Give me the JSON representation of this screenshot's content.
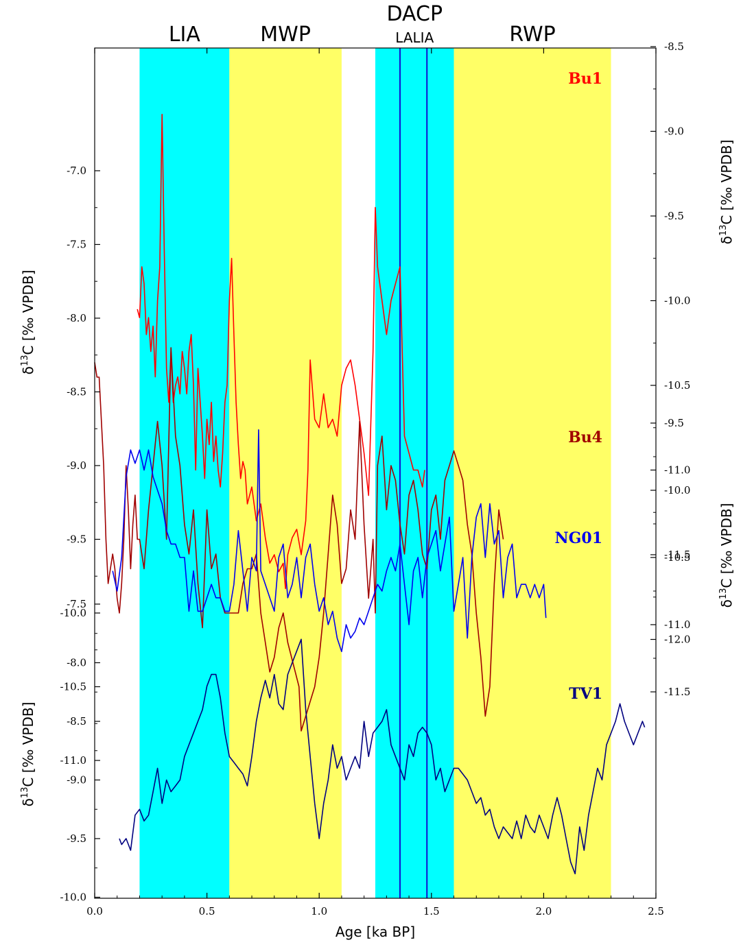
{
  "chart_data": {
    "type": "line",
    "xlabel": "Age [ka BP]",
    "x_ticks": [
      "0.0",
      "0.5",
      "1.0",
      "1.5",
      "2.0",
      "2.5"
    ],
    "xlim": [
      0,
      2.5
    ],
    "periods": [
      {
        "label": "LIA",
        "sub": "",
        "start": 0.2,
        "end": 0.6,
        "color": "#00ffff"
      },
      {
        "label": "MWP",
        "sub": "",
        "start": 0.6,
        "end": 1.1,
        "color": "#ffff66"
      },
      {
        "label": "DACP",
        "sub": "LALIA",
        "start": 1.25,
        "end": 1.6,
        "color": "#00ffff"
      },
      {
        "label": "RWP",
        "sub": "",
        "start": 1.6,
        "end": 2.3,
        "color": "#ffff66"
      }
    ],
    "lalia_lines": [
      1.36,
      1.48
    ],
    "axes": [
      {
        "id": "left_upper",
        "side": "left",
        "label": "δ13C [‰ VPDB]",
        "ticks": [
          "-7.0",
          "-7.5",
          "-8.0",
          "-8.5",
          "-9.0",
          "-9.5",
          "-10.0",
          "-10.5",
          "-11.0"
        ],
        "values": [
          -7.0,
          -7.5,
          -8.0,
          -8.5,
          -9.0,
          -9.5,
          -10.0,
          -10.5,
          -11.0
        ]
      },
      {
        "id": "left_lower",
        "side": "left",
        "label": "δ13C [‰ VPDB]",
        "ticks": [
          "-7.5",
          "-8.0",
          "-8.5",
          "-9.0",
          "-9.5",
          "-10.0"
        ],
        "values": [
          -7.5,
          -8.0,
          -8.5,
          -9.0,
          -9.5,
          -10.0
        ]
      },
      {
        "id": "right_upper",
        "side": "right",
        "label": "δ13C [‰ VPDB]",
        "ticks": [
          "-8.5",
          "-9.0",
          "-9.5",
          "-10.0",
          "-10.5",
          "-11.0",
          "-11.5",
          "-12.0"
        ],
        "values": [
          -8.5,
          -9.0,
          -9.5,
          -10.0,
          -10.5,
          -11.0,
          -11.5,
          -12.0
        ]
      },
      {
        "id": "right_lower",
        "side": "right",
        "label": "δ13C [‰ VPDB]",
        "ticks": [
          "-9.5",
          "-10.0",
          "-10.5",
          "-11.0",
          "-11.5"
        ],
        "values": [
          -9.5,
          -10.0,
          -10.5,
          -11.0,
          -11.5
        ]
      }
    ],
    "series": [
      {
        "name": "Bu1",
        "axis": "right_upper",
        "color": "#ff0000",
        "x": [
          0.19,
          0.2,
          0.21,
          0.22,
          0.23,
          0.24,
          0.25,
          0.26,
          0.27,
          0.28,
          0.29,
          0.3,
          0.31,
          0.32,
          0.33,
          0.34,
          0.35,
          0.36,
          0.37,
          0.38,
          0.39,
          0.4,
          0.41,
          0.42,
          0.43,
          0.44,
          0.45,
          0.46,
          0.47,
          0.48,
          0.49,
          0.5,
          0.51,
          0.52,
          0.53,
          0.54,
          0.55,
          0.56,
          0.57,
          0.58,
          0.59,
          0.6,
          0.61,
          0.62,
          0.63,
          0.64,
          0.65,
          0.66,
          0.67,
          0.68,
          0.7,
          0.72,
          0.74,
          0.76,
          0.78,
          0.8,
          0.82,
          0.84,
          0.85,
          0.86,
          0.88,
          0.9,
          0.92,
          0.94,
          0.95,
          0.96,
          0.98,
          1.0,
          1.02,
          1.04,
          1.06,
          1.08,
          1.1,
          1.12,
          1.14,
          1.16,
          1.18,
          1.2,
          1.22,
          1.24,
          1.25,
          1.26,
          1.28,
          1.3,
          1.32,
          1.34,
          1.36,
          1.38,
          1.4,
          1.42,
          1.44,
          1.46,
          1.47
        ],
        "y": [
          -10.05,
          -10.1,
          -9.8,
          -9.9,
          -10.2,
          -10.1,
          -10.3,
          -10.15,
          -10.45,
          -10.0,
          -9.8,
          -8.9,
          -9.7,
          -10.4,
          -10.6,
          -10.3,
          -10.6,
          -10.5,
          -10.45,
          -10.55,
          -10.3,
          -10.4,
          -10.55,
          -10.3,
          -10.2,
          -10.5,
          -11.0,
          -10.4,
          -10.6,
          -10.8,
          -11.05,
          -10.7,
          -10.85,
          -10.6,
          -10.95,
          -10.8,
          -11.0,
          -11.1,
          -10.9,
          -10.6,
          -10.5,
          -10.0,
          -9.75,
          -10.2,
          -10.6,
          -10.85,
          -11.05,
          -10.95,
          -11.0,
          -11.2,
          -11.1,
          -11.3,
          -11.2,
          -11.4,
          -11.55,
          -11.5,
          -11.6,
          -11.55,
          -11.7,
          -11.5,
          -11.4,
          -11.35,
          -11.5,
          -11.3,
          -11.0,
          -10.35,
          -10.7,
          -10.75,
          -10.55,
          -10.75,
          -10.7,
          -10.8,
          -10.5,
          -10.4,
          -10.35,
          -10.5,
          -10.7,
          -10.9,
          -11.15,
          -10.3,
          -9.45,
          -9.8,
          -10.0,
          -10.2,
          -10.0,
          -9.9,
          -9.8,
          -10.8,
          -10.9,
          -11.0,
          -11.0,
          -11.1,
          -11.0
        ]
      },
      {
        "name": "Bu4",
        "axis": "left_upper",
        "color": "#a00000",
        "x": [
          0.0,
          0.01,
          0.02,
          0.04,
          0.05,
          0.06,
          0.07,
          0.08,
          0.09,
          0.1,
          0.11,
          0.12,
          0.13,
          0.14,
          0.15,
          0.16,
          0.17,
          0.18,
          0.19,
          0.2,
          0.22,
          0.24,
          0.26,
          0.28,
          0.3,
          0.32,
          0.34,
          0.36,
          0.38,
          0.4,
          0.42,
          0.44,
          0.46,
          0.48,
          0.5,
          0.52,
          0.54,
          0.56,
          0.58,
          0.6,
          0.62,
          0.64,
          0.66,
          0.68,
          0.7,
          0.72,
          0.74,
          0.76,
          0.78,
          0.8,
          0.82,
          0.84,
          0.86,
          0.91,
          0.92,
          0.94,
          0.96,
          0.98,
          1.0,
          1.02,
          1.04,
          1.06,
          1.08,
          1.1,
          1.12,
          1.14,
          1.16,
          1.18,
          1.2,
          1.22,
          1.24,
          1.25,
          1.26,
          1.28,
          1.3,
          1.32,
          1.34,
          1.36,
          1.38,
          1.4,
          1.42,
          1.44,
          1.46,
          1.48,
          1.5,
          1.52,
          1.54,
          1.56,
          1.58,
          1.6,
          1.62,
          1.64,
          1.66,
          1.68,
          1.7,
          1.72,
          1.74,
          1.76,
          1.78,
          1.8,
          1.82
        ],
        "y": [
          -8.3,
          -8.4,
          -8.4,
          -9.0,
          -9.5,
          -9.8,
          -9.7,
          -9.6,
          -9.7,
          -9.9,
          -10.0,
          -9.8,
          -9.5,
          -9.0,
          -9.3,
          -9.7,
          -9.4,
          -9.2,
          -9.5,
          -9.5,
          -9.7,
          -9.3,
          -9.0,
          -8.7,
          -9.0,
          -9.5,
          -8.2,
          -8.8,
          -9.0,
          -9.4,
          -9.6,
          -9.3,
          -9.8,
          -10.1,
          -9.3,
          -9.7,
          -9.6,
          -9.9,
          -10.0,
          -10.0,
          -10.0,
          -10.0,
          -9.8,
          -9.7,
          -9.7,
          -9.6,
          -10.0,
          -10.2,
          -10.4,
          -10.3,
          -10.1,
          -10.0,
          -10.2,
          -10.5,
          -10.8,
          -10.7,
          -10.6,
          -10.5,
          -10.3,
          -10.0,
          -9.6,
          -9.2,
          -9.4,
          -9.8,
          -9.7,
          -9.3,
          -9.5,
          -8.7,
          -9.4,
          -9.9,
          -9.5,
          -10.0,
          -9.0,
          -8.8,
          -9.3,
          -9.0,
          -9.1,
          -9.4,
          -9.6,
          -9.2,
          -9.1,
          -9.3,
          -9.6,
          -9.7,
          -9.3,
          -9.2,
          -9.5,
          -9.1,
          -9.0,
          -8.9,
          -9.0,
          -9.1,
          -9.4,
          -9.6,
          -10.0,
          -10.3,
          -10.7,
          -10.5,
          -9.8,
          -9.3,
          -9.5
        ]
      },
      {
        "name": "NG01",
        "axis": "right_lower",
        "color": "#0000ee",
        "x": [
          0.08,
          0.1,
          0.12,
          0.14,
          0.16,
          0.18,
          0.2,
          0.22,
          0.24,
          0.26,
          0.28,
          0.3,
          0.32,
          0.34,
          0.36,
          0.38,
          0.4,
          0.42,
          0.44,
          0.46,
          0.48,
          0.5,
          0.52,
          0.54,
          0.56,
          0.58,
          0.6,
          0.62,
          0.64,
          0.66,
          0.68,
          0.7,
          0.72,
          0.73,
          0.74,
          0.76,
          0.78,
          0.8,
          0.82,
          0.84,
          0.86,
          0.88,
          0.9,
          0.92,
          0.94,
          0.96,
          0.98,
          1.0,
          1.02,
          1.04,
          1.06,
          1.08,
          1.1,
          1.12,
          1.14,
          1.16,
          1.18,
          1.2,
          1.22,
          1.24,
          1.26,
          1.28,
          1.3,
          1.32,
          1.34,
          1.36,
          1.38,
          1.4,
          1.42,
          1.44,
          1.46,
          1.48,
          1.5,
          1.52,
          1.54,
          1.56,
          1.58,
          1.6,
          1.62,
          1.64,
          1.66,
          1.68,
          1.7,
          1.72,
          1.74,
          1.76,
          1.78,
          1.8,
          1.82,
          1.84,
          1.86,
          1.88,
          1.9,
          1.92,
          1.94,
          1.96,
          1.98,
          2.0,
          2.01
        ],
        "y": [
          -10.6,
          -10.75,
          -10.5,
          -9.9,
          -9.7,
          -9.8,
          -9.7,
          -9.85,
          -9.7,
          -9.9,
          -10.0,
          -10.1,
          -10.3,
          -10.4,
          -10.4,
          -10.5,
          -10.5,
          -10.9,
          -10.6,
          -10.9,
          -10.9,
          -10.8,
          -10.7,
          -10.8,
          -10.8,
          -10.9,
          -10.9,
          -10.7,
          -10.3,
          -10.6,
          -10.9,
          -10.5,
          -10.6,
          -9.55,
          -10.6,
          -10.7,
          -10.8,
          -10.9,
          -10.5,
          -10.4,
          -10.8,
          -10.7,
          -10.5,
          -10.8,
          -10.5,
          -10.4,
          -10.7,
          -10.9,
          -10.8,
          -11.0,
          -10.9,
          -11.1,
          -11.2,
          -11.0,
          -11.1,
          -11.05,
          -10.95,
          -11.0,
          -10.9,
          -10.8,
          -10.7,
          -10.75,
          -10.6,
          -10.5,
          -10.6,
          -10.4,
          -10.7,
          -11.0,
          -10.6,
          -10.5,
          -10.8,
          -10.5,
          -10.4,
          -10.3,
          -10.6,
          -10.4,
          -10.2,
          -10.9,
          -10.7,
          -10.5,
          -11.1,
          -10.5,
          -10.2,
          -10.1,
          -10.5,
          -10.1,
          -10.4,
          -10.3,
          -10.8,
          -10.5,
          -10.4,
          -10.8,
          -10.7,
          -10.7,
          -10.8,
          -10.7,
          -10.8,
          -10.7,
          -10.95
        ]
      },
      {
        "name": "TV1",
        "axis": "left_lower",
        "color": "#000080",
        "x": [
          0.11,
          0.12,
          0.14,
          0.16,
          0.18,
          0.2,
          0.22,
          0.24,
          0.26,
          0.28,
          0.3,
          0.32,
          0.34,
          0.36,
          0.38,
          0.4,
          0.42,
          0.44,
          0.46,
          0.48,
          0.5,
          0.52,
          0.54,
          0.56,
          0.58,
          0.6,
          0.62,
          0.64,
          0.66,
          0.68,
          0.7,
          0.72,
          0.74,
          0.76,
          0.78,
          0.8,
          0.82,
          0.84,
          0.86,
          0.88,
          0.9,
          0.92,
          0.94,
          0.96,
          0.98,
          1.0,
          1.02,
          1.04,
          1.06,
          1.08,
          1.1,
          1.12,
          1.14,
          1.16,
          1.18,
          1.2,
          1.22,
          1.24,
          1.26,
          1.28,
          1.3,
          1.32,
          1.34,
          1.36,
          1.38,
          1.4,
          1.42,
          1.44,
          1.46,
          1.48,
          1.5,
          1.52,
          1.54,
          1.56,
          1.58,
          1.6,
          1.62,
          1.64,
          1.66,
          1.68,
          1.7,
          1.72,
          1.74,
          1.76,
          1.78,
          1.8,
          1.82,
          1.84,
          1.86,
          1.88,
          1.9,
          1.92,
          1.94,
          1.96,
          1.98,
          2.0,
          2.02,
          2.04,
          2.06,
          2.08,
          2.1,
          2.12,
          2.14,
          2.16,
          2.18,
          2.2,
          2.22,
          2.24,
          2.26,
          2.28,
          2.3,
          2.32,
          2.34,
          2.36,
          2.38,
          2.4,
          2.42,
          2.44,
          2.45
        ],
        "y": [
          -9.5,
          -9.55,
          -9.5,
          -9.6,
          -9.3,
          -9.25,
          -9.35,
          -9.3,
          -9.1,
          -8.9,
          -9.2,
          -9.0,
          -9.1,
          -9.05,
          -9.0,
          -8.8,
          -8.7,
          -8.6,
          -8.5,
          -8.4,
          -8.2,
          -8.1,
          -8.1,
          -8.3,
          -8.6,
          -8.8,
          -8.85,
          -8.9,
          -8.95,
          -9.05,
          -8.8,
          -8.5,
          -8.3,
          -8.15,
          -8.3,
          -8.1,
          -8.35,
          -8.4,
          -8.1,
          -8.0,
          -7.9,
          -7.8,
          -8.4,
          -8.8,
          -9.2,
          -9.5,
          -9.2,
          -9.0,
          -8.7,
          -8.9,
          -8.8,
          -9.0,
          -8.9,
          -8.8,
          -8.9,
          -8.5,
          -8.8,
          -8.6,
          -8.55,
          -8.5,
          -8.4,
          -8.7,
          -8.8,
          -8.9,
          -9.0,
          -8.7,
          -8.8,
          -8.6,
          -8.55,
          -8.6,
          -8.7,
          -9.0,
          -8.9,
          -9.1,
          -9.0,
          -8.9,
          -8.9,
          -8.95,
          -9.0,
          -9.1,
          -9.2,
          -9.15,
          -9.3,
          -9.25,
          -9.4,
          -9.5,
          -9.4,
          -9.45,
          -9.5,
          -9.35,
          -9.5,
          -9.3,
          -9.4,
          -9.45,
          -9.3,
          -9.4,
          -9.5,
          -9.3,
          -9.15,
          -9.3,
          -9.5,
          -9.7,
          -9.8,
          -9.4,
          -9.6,
          -9.3,
          -9.1,
          -8.9,
          -9.0,
          -8.7,
          -8.6,
          -8.5,
          -8.35,
          -8.5,
          -8.6,
          -8.7,
          -8.6,
          -8.5,
          -8.55
        ]
      }
    ]
  }
}
